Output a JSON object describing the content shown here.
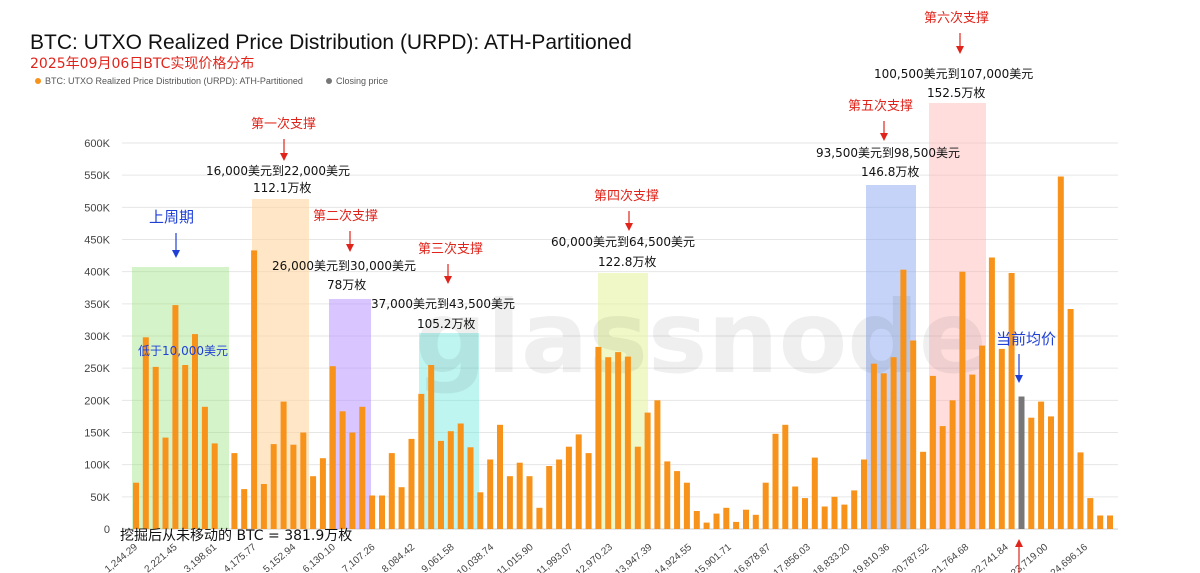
{
  "chart_data": {
    "type": "bar",
    "title": "BTC: UTXO Realized Price Distribution (URPD): ATH-Partitioned",
    "subtitle": "2025年09月06日BTC实现价格分布",
    "legend": [
      {
        "label": "BTC: UTXO Realized Price Distribution (URPD): ATH-Partitioned",
        "color": "#f7931a"
      },
      {
        "label": "Closing price",
        "color": "#777777"
      }
    ],
    "watermark": "glassnode",
    "ylim": [
      0,
      600000
    ],
    "yticks": [
      0,
      50000,
      100000,
      150000,
      200000,
      250000,
      300000,
      350000,
      400000,
      450000,
      500000,
      550000,
      600000
    ],
    "ytick_labels": [
      "0",
      "50K",
      "100K",
      "150K",
      "200K",
      "250K",
      "300K",
      "350K",
      "400K",
      "450K",
      "500K",
      "550K",
      "600K"
    ],
    "xtick_labels": [
      "1,244.29",
      "2,221.45",
      "3,198.61",
      "4,175.77",
      "5,152.94",
      "6,130.10",
      "7,107.26",
      "8,084.42",
      "9,061.58",
      "10,038.74",
      "11,015.90",
      "11,993.07",
      "12,970.23",
      "13,947.39",
      "14,924.55",
      "15,901.71",
      "16,878.87",
      "17,856.03",
      "18,833.20",
      "19,810.36",
      "20,787.52",
      "21,764.68",
      "22,741.84",
      "23,719.00",
      "24,696.16"
    ],
    "values": [
      72000,
      298000,
      252000,
      142000,
      348000,
      255000,
      303000,
      190000,
      133000,
      0,
      118000,
      62000,
      433000,
      70000,
      132000,
      198000,
      131000,
      150000,
      82000,
      110000,
      253000,
      183000,
      150000,
      190000,
      52000,
      52000,
      118000,
      65000,
      140000,
      210000,
      255000,
      137000,
      152000,
      164000,
      127000,
      57000,
      108000,
      162000,
      82000,
      103000,
      82000,
      33000,
      98000,
      108000,
      128000,
      147000,
      118000,
      283000,
      267000,
      275000,
      268000,
      128000,
      181000,
      200000,
      105000,
      90000,
      72000,
      28000,
      10000,
      24000,
      33000,
      11000,
      30000,
      22000,
      72000,
      148000,
      162000,
      66000,
      48000,
      111000,
      35000,
      50000,
      38000,
      60000,
      108000,
      257000,
      242000,
      267000,
      403000,
      293000,
      120000,
      238000,
      160000,
      200000,
      400000,
      240000,
      285000,
      422000,
      280000,
      398000,
      206000,
      173000,
      198000,
      175000,
      548000,
      342000,
      119000,
      48000,
      21000,
      21000
    ],
    "closing_price_index": 90
  },
  "annotations": {
    "zone_labels": {
      "prev_cycle": "上周期",
      "below_10000": "低于10,000美元",
      "support1": "第一次支撑",
      "support2": "第二次支撑",
      "support3": "第三次支撑",
      "support4": "第四次支撑",
      "support5": "第五次支撑",
      "support6": "第六次支撑",
      "current_avg": "当前均价"
    },
    "range1": "16,000美元到22,000美元",
    "amount1": "112.1万枚",
    "range2": "26,000美元到30,000美元",
    "amount2": "78万枚",
    "range3": "37,000美元到43,500美元",
    "amount3": "105.2万枚",
    "range4": "60,000美元到64,500美元",
    "amount4": "122.8万枚",
    "range5": "93,500美元到98,500美元",
    "amount5": "146.8万枚",
    "range6": "100,500美元到107,000美元",
    "amount6": "152.5万枚",
    "footer": "挖掘后从未移动的 BTC = 381.9万枚"
  },
  "colors": {
    "bar": "#f7931a",
    "closing": "#777777",
    "red": "#e0241b",
    "blue": "#1f3fd6",
    "zone_green": "#9be37c",
    "zone_orange": "#ffd6a0",
    "zone_purple": "#b38cff",
    "zone_cyan": "#6fe8de",
    "zone_yellow": "#e6f3a2",
    "zone_blue": "#8aa8f0",
    "zone_pink": "#ffb3b3"
  }
}
